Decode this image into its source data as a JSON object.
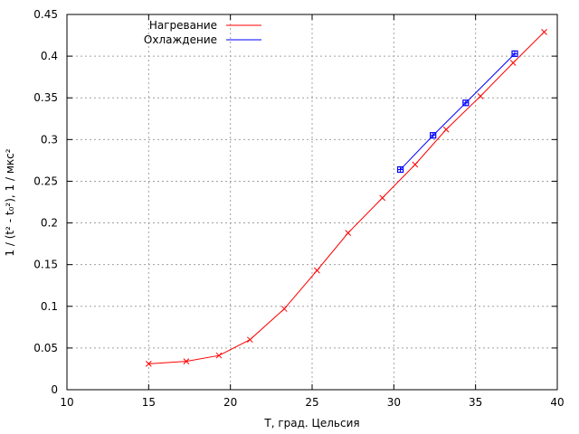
{
  "chart_data": {
    "type": "line",
    "title": "",
    "xlabel": "T, град. Цельсия",
    "ylabel": "1 / (t² - t₀²), 1 / мкс²",
    "xlim": [
      10,
      40
    ],
    "ylim": [
      0,
      0.45
    ],
    "xticks": [
      "10",
      "15",
      "20",
      "25",
      "30",
      "35",
      "40"
    ],
    "yticks": [
      "0",
      "0.05",
      "0.1",
      "0.15",
      "0.2",
      "0.25",
      "0.3",
      "0.35",
      "0.4",
      "0.45"
    ],
    "grid": true,
    "legend_position": "top-left",
    "series": [
      {
        "name": "Нагревание",
        "color": "#ff0000",
        "marker": "cross",
        "x": [
          15.0,
          17.3,
          19.3,
          21.2,
          23.3,
          25.3,
          27.2,
          29.3,
          31.3,
          33.2,
          35.3,
          37.3,
          39.2
        ],
        "y": [
          0.031,
          0.034,
          0.041,
          0.06,
          0.097,
          0.143,
          0.188,
          0.23,
          0.27,
          0.312,
          0.352,
          0.392,
          0.429
        ]
      },
      {
        "name": "Охлаждение",
        "color": "#0000ff",
        "marker": "box",
        "x": [
          30.4,
          32.4,
          34.4,
          37.4
        ],
        "y": [
          0.264,
          0.305,
          0.344,
          0.403
        ]
      }
    ]
  }
}
